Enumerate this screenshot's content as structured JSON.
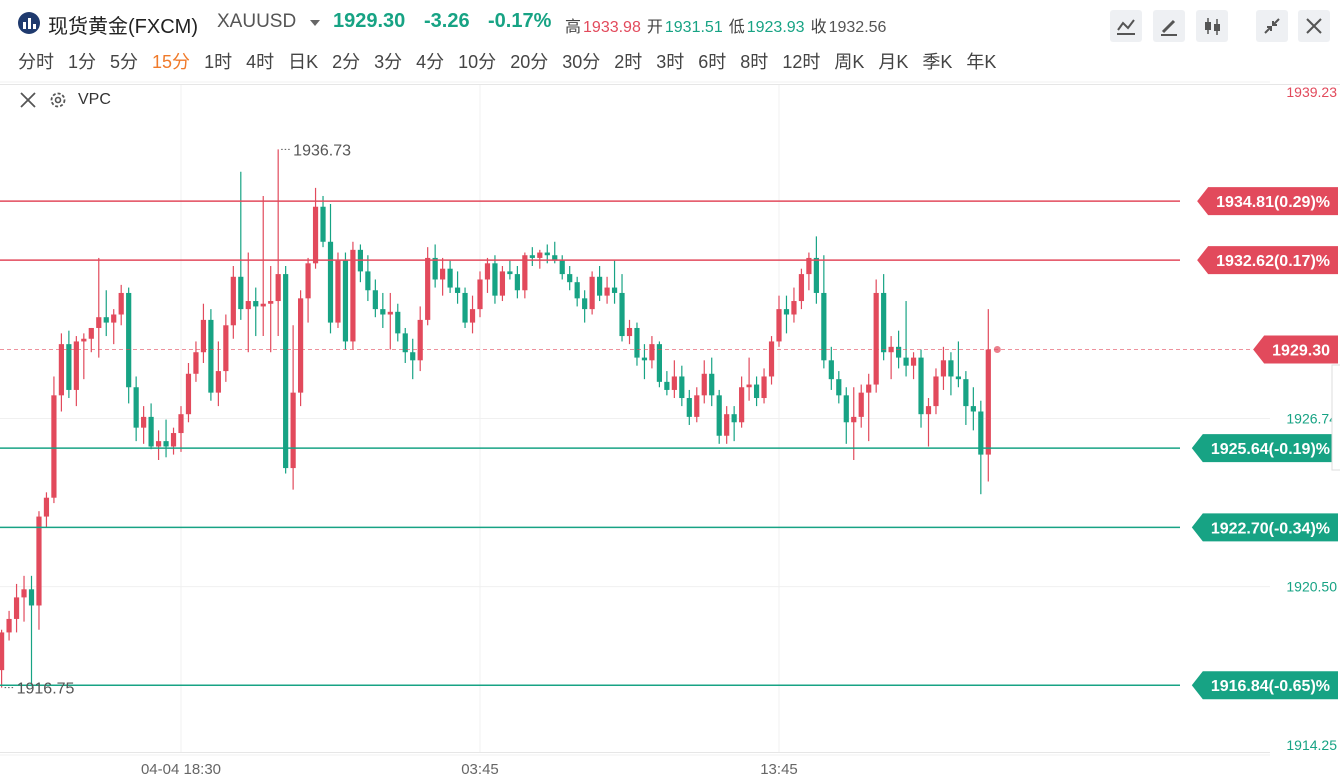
{
  "header": {
    "title": "现货黄金(FXCM)",
    "symbol": "XAUUSD",
    "price": "1929.30",
    "change": "-3.26",
    "change_pct": "-0.17%",
    "stats": [
      {
        "label": "高",
        "value": "1933.98",
        "color": "#e24a5c"
      },
      {
        "label": "开",
        "value": "1931.51",
        "color": "#17a384"
      },
      {
        "label": "低",
        "value": "1923.93",
        "color": "#17a384"
      },
      {
        "label": "收",
        "value": "1932.56",
        "color": "#555555"
      }
    ]
  },
  "periods": [
    {
      "label": "分时"
    },
    {
      "label": "1分"
    },
    {
      "label": "5分"
    },
    {
      "label": "15分",
      "active": true
    },
    {
      "label": "1时"
    },
    {
      "label": "4时"
    },
    {
      "label": "日K"
    },
    {
      "label": "2分"
    },
    {
      "label": "3分"
    },
    {
      "label": "4分"
    },
    {
      "label": "10分"
    },
    {
      "label": "20分"
    },
    {
      "label": "30分"
    },
    {
      "label": "2时"
    },
    {
      "label": "3时"
    },
    {
      "label": "6时"
    },
    {
      "label": "8时"
    },
    {
      "label": "12时"
    },
    {
      "label": "周K"
    },
    {
      "label": "月K"
    },
    {
      "label": "季K"
    },
    {
      "label": "年K"
    }
  ],
  "indicator": "VPC",
  "chart_data": {
    "type": "candlestick",
    "up_color": "#e24a5c",
    "down_color": "#17a384",
    "grid": true,
    "ylim": [
      1914.25,
      1939.23
    ],
    "yticks": [
      1914.25,
      {
        "value": 1920.5,
        "label": "1920.50"
      },
      1926.74,
      1939.23
    ],
    "categories": [
      null,
      null,
      null,
      null,
      null,
      null,
      null,
      null,
      null,
      null,
      null,
      null,
      null,
      null,
      null,
      null,
      null,
      null,
      null,
      null,
      null,
      null,
      null,
      null,
      "04-04 18:30",
      null,
      null,
      null,
      null,
      null,
      null,
      null,
      null,
      null,
      null,
      null,
      null,
      null,
      null,
      null,
      null,
      null,
      null,
      null,
      null,
      null,
      null,
      null,
      null,
      null,
      null,
      null,
      null,
      null,
      null,
      null,
      null,
      null,
      null,
      null,
      null,
      null,
      null,
      null,
      "03:45",
      null,
      null,
      null,
      null,
      null,
      null,
      null,
      null,
      null,
      null,
      null,
      null,
      null,
      null,
      null,
      null,
      null,
      null,
      null,
      null,
      null,
      null,
      null,
      null,
      null,
      null,
      null,
      null,
      null,
      null,
      null,
      null,
      null,
      null,
      null,
      null,
      null,
      null,
      null,
      "13:45",
      null,
      null,
      null,
      null,
      null,
      null,
      null,
      null,
      null,
      null,
      null,
      null,
      null,
      null,
      null,
      null,
      null,
      null,
      null,
      null,
      null,
      null,
      null,
      null,
      null,
      null,
      null,
      null
    ],
    "open": [
      1917.4,
      1918.8,
      1919.3,
      1920.1,
      1920.4,
      1919.8,
      1923.1,
      1923.8,
      1927.6,
      1929.5,
      1927.8,
      1929.6,
      1929.7,
      1930.1,
      1930.5,
      1930.3,
      1930.6,
      1931.4,
      1927.9,
      1926.4,
      1926.8,
      1925.7,
      1925.9,
      1925.7,
      1926.2,
      1926.9,
      1928.4,
      1929.2,
      1930.4,
      1927.7,
      1928.5,
      1930.2,
      1932.0,
      1930.8,
      1931.1,
      1930.9,
      1931.0,
      1931.1,
      1932.1,
      1924.9,
      1927.7,
      1931.2,
      1932.5,
      1934.6,
      1933.3,
      1930.3,
      1932.6,
      1929.6,
      1933.0,
      1932.2,
      1931.5,
      1930.8,
      1930.6,
      1930.7,
      1929.9,
      1929.2,
      1928.9,
      1930.4,
      1932.7,
      1931.9,
      1932.3,
      1931.6,
      1931.4,
      1930.3,
      1930.8,
      1931.9,
      1932.5,
      1931.3,
      1932.2,
      1932.1,
      1931.5,
      1932.8,
      1932.7,
      1932.9,
      1932.8,
      1932.6,
      1932.1,
      1931.8,
      1931.2,
      1930.8,
      1932.0,
      1931.3,
      1931.6,
      1931.4,
      1929.8,
      1930.1,
      1929.0,
      1928.9,
      1929.5,
      1928.1,
      1927.8,
      1928.3,
      1927.5,
      1926.8,
      1927.6,
      1928.4,
      1927.6,
      1926.1,
      1926.9,
      1926.6,
      1927.9,
      1928.0,
      1927.5,
      1928.3,
      1929.6,
      1930.8,
      1930.6,
      1931.1,
      1932.1,
      1932.7,
      1931.4,
      1928.9,
      1928.2,
      1927.6,
      1926.6,
      1926.8,
      1927.7,
      1928.0,
      1931.4,
      1929.2,
      1929.4,
      1929.0,
      1928.7,
      1929.0,
      1926.9,
      1927.2,
      1928.3,
      1928.9,
      1928.3,
      1928.2,
      1927.2,
      1927.0,
      1925.4
    ],
    "high": [
      1918.9,
      1919.6,
      1920.6,
      1920.9,
      1920.9,
      1923.3,
      1924.0,
      1928.3,
      1929.9,
      1930.0,
      1929.8,
      1929.9,
      1930.1,
      1932.7,
      1931.5,
      1930.8,
      1931.7,
      1931.6,
      1928.3,
      1927.2,
      1927.3,
      1926.3,
      1926.7,
      1926.4,
      1927.2,
      1928.8,
      1929.6,
      1931.0,
      1930.8,
      1929.6,
      1930.6,
      1932.4,
      1935.9,
      1932.9,
      1931.6,
      1935.0,
      1932.4,
      1936.73,
      1932.4,
      1930.2,
      1931.5,
      1932.7,
      1935.3,
      1935.0,
      1934.7,
      1932.9,
      1932.9,
      1933.3,
      1933.2,
      1932.8,
      1931.9,
      1931.4,
      1931.4,
      1931.0,
      1930.1,
      1929.7,
      1930.9,
      1933.1,
      1933.2,
      1932.7,
      1932.6,
      1932.2,
      1931.6,
      1931.3,
      1932.2,
      1932.7,
      1932.8,
      1932.4,
      1932.6,
      1932.4,
      1932.9,
      1933.1,
      1933.0,
      1933.2,
      1933.3,
      1932.8,
      1932.4,
      1932.0,
      1931.5,
      1932.2,
      1932.4,
      1932.0,
      1932.6,
      1932.1,
      1930.4,
      1930.3,
      1929.5,
      1929.8,
      1929.6,
      1928.5,
      1928.9,
      1928.7,
      1927.8,
      1927.9,
      1928.9,
      1929.0,
      1927.8,
      1927.2,
      1927.2,
      1928.3,
      1929.0,
      1928.3,
      1928.6,
      1929.8,
      1931.3,
      1931.3,
      1931.6,
      1932.3,
      1932.9,
      1933.5,
      1932.8,
      1929.4,
      1928.5,
      1927.9,
      1927.9,
      1928.0,
      1928.4,
      1931.9,
      1932.1,
      1929.8,
      1930.0,
      1931.1,
      1929.2,
      1929.3,
      1927.5,
      1928.6,
      1929.4,
      1929.2,
      1929.6,
      1928.5,
      1927.9,
      1927.4,
      1930.8
    ],
    "low": [
      1916.75,
      1918.5,
      1918.8,
      1919.2,
      1916.8,
      1918.9,
      1922.7,
      1923.6,
      1927.0,
      1927.5,
      1927.2,
      1928.2,
      1929.2,
      1929.0,
      1929.8,
      1929.5,
      1930.2,
      1927.3,
      1925.9,
      1925.8,
      1925.6,
      1925.2,
      1925.3,
      1925.4,
      1925.5,
      1926.6,
      1928.1,
      1928.8,
      1927.4,
      1927.2,
      1928.1,
      1929.7,
      1930.4,
      1929.2,
      1929.8,
      1929.8,
      1929.2,
      1929.8,
      1924.7,
      1924.1,
      1927.2,
      1930.3,
      1932.3,
      1933.1,
      1929.9,
      1930.1,
      1929.3,
      1929.3,
      1931.8,
      1931.1,
      1930.5,
      1930.1,
      1929.3,
      1929.6,
      1928.8,
      1928.2,
      1928.5,
      1930.2,
      1931.6,
      1931.3,
      1931.4,
      1931.0,
      1930.1,
      1929.9,
      1930.5,
      1931.4,
      1931.0,
      1931.1,
      1931.9,
      1931.2,
      1931.2,
      1932.4,
      1932.3,
      1932.5,
      1932.5,
      1931.9,
      1931.5,
      1930.9,
      1930.3,
      1930.6,
      1931.1,
      1931.0,
      1931.0,
      1929.6,
      1929.5,
      1928.7,
      1928.2,
      1928.6,
      1927.9,
      1927.6,
      1927.5,
      1927.2,
      1926.5,
      1926.6,
      1927.3,
      1927.2,
      1925.8,
      1925.8,
      1925.9,
      1926.4,
      1927.4,
      1927.2,
      1927.3,
      1928.0,
      1929.4,
      1929.9,
      1930.3,
      1930.8,
      1931.5,
      1931.0,
      1928.6,
      1927.8,
      1927.3,
      1925.8,
      1925.2,
      1926.4,
      1925.9,
      1927.7,
      1928.9,
      1928.2,
      1928.6,
      1928.3,
      1928.2,
      1926.4,
      1925.7,
      1926.9,
      1927.8,
      1927.6,
      1927.9,
      1926.5,
      1926.3,
      1923.93,
      1924.4
    ],
    "close": [
      1918.8,
      1919.3,
      1920.1,
      1920.4,
      1919.8,
      1923.1,
      1923.8,
      1927.6,
      1929.5,
      1927.8,
      1929.6,
      1929.7,
      1930.1,
      1930.5,
      1930.3,
      1930.6,
      1931.4,
      1927.9,
      1926.4,
      1926.8,
      1925.7,
      1925.9,
      1925.7,
      1926.2,
      1926.9,
      1928.4,
      1929.2,
      1930.4,
      1927.7,
      1928.5,
      1930.2,
      1932.0,
      1930.8,
      1931.1,
      1930.9,
      1931.0,
      1931.1,
      1932.1,
      1924.9,
      1927.7,
      1931.2,
      1932.5,
      1934.6,
      1933.3,
      1930.3,
      1932.6,
      1929.6,
      1933.0,
      1932.2,
      1931.5,
      1930.8,
      1930.6,
      1930.7,
      1929.9,
      1929.2,
      1928.9,
      1930.4,
      1932.7,
      1931.9,
      1932.3,
      1931.6,
      1931.4,
      1930.3,
      1930.8,
      1931.9,
      1932.5,
      1931.3,
      1932.2,
      1932.1,
      1931.5,
      1932.8,
      1932.7,
      1932.9,
      1932.8,
      1932.6,
      1932.1,
      1931.8,
      1931.2,
      1930.8,
      1932.0,
      1931.3,
      1931.6,
      1931.4,
      1929.8,
      1930.1,
      1929.0,
      1928.9,
      1929.5,
      1928.1,
      1927.8,
      1928.3,
      1927.5,
      1926.8,
      1927.6,
      1928.4,
      1927.6,
      1926.1,
      1926.9,
      1926.6,
      1927.9,
      1928.0,
      1927.5,
      1928.3,
      1929.6,
      1930.8,
      1930.6,
      1931.1,
      1932.1,
      1932.7,
      1931.4,
      1928.9,
      1928.2,
      1927.6,
      1926.6,
      1926.8,
      1927.7,
      1928.0,
      1931.4,
      1929.2,
      1929.4,
      1929.0,
      1928.7,
      1929.0,
      1926.9,
      1927.2,
      1928.3,
      1928.9,
      1928.3,
      1928.2,
      1927.2,
      1927.0,
      1925.4,
      1929.3
    ],
    "price_lines": [
      {
        "value": 1934.81,
        "label": "1934.81(0.29)%",
        "color": "#e24a5c"
      },
      {
        "value": 1932.62,
        "label": "1932.62(0.17)%",
        "color": "#e24a5c"
      },
      {
        "value": 1925.64,
        "label": "1925.64(-0.19)%",
        "color": "#17a384"
      },
      {
        "value": 1922.7,
        "label": "1922.70(-0.34)%",
        "color": "#17a384"
      },
      {
        "value": 1916.84,
        "label": "1916.84(-0.65)%",
        "color": "#17a384"
      }
    ],
    "last_price": {
      "value": 1929.3,
      "label": "1929.30",
      "color": "#e24a5c"
    },
    "annotations": [
      1936.73,
      1916.75
    ]
  }
}
